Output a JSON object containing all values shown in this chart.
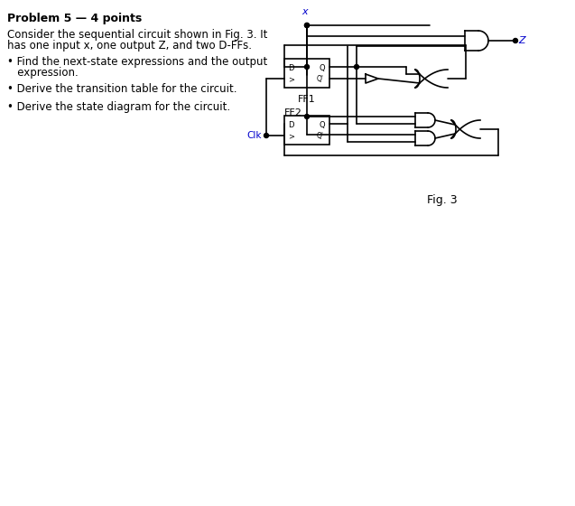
{
  "title": "Problem 5 — 4 points",
  "body_text": [
    "Consider the sequential circuit shown in Fig. 3. It\nhas one input x, one output Z, and two D-FFs.",
    "• Find the next-state expressions and the output\n   expression.",
    "• Derive the transition table for the circuit.",
    "• Derive the state diagram for the circuit."
  ],
  "fig_caption": "Fig. 3",
  "label_x": "x",
  "label_z": "Z",
  "label_clk": "Clk",
  "label_ff1": "FF1",
  "label_ff2": "FF2",
  "text_color": "#000000",
  "blue_color": "#0000cc",
  "line_color": "#000000",
  "bg_color": "#ffffff"
}
